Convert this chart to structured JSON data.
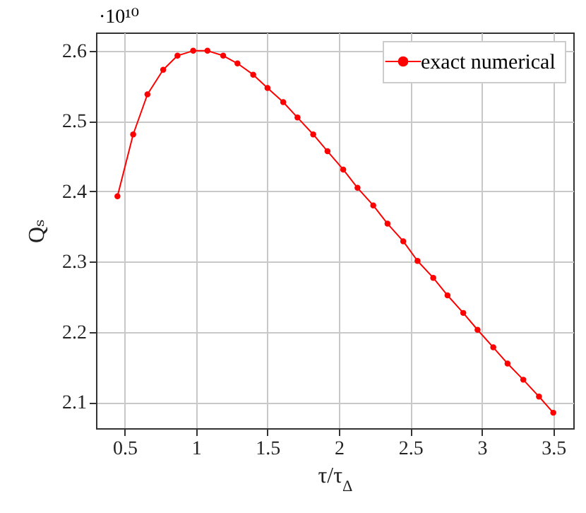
{
  "chart_data": {
    "type": "line",
    "xlabel": "τ/τ$_{Δ}$",
    "ylabel": "Qₛ",
    "annotations": [
      "·10¹⁰"
    ],
    "x": [
      0.45,
      0.56,
      0.66,
      0.77,
      0.87,
      0.98,
      1.08,
      1.19,
      1.29,
      1.4,
      1.5,
      1.61,
      1.71,
      1.82,
      1.92,
      2.03,
      2.13,
      2.24,
      2.34,
      2.45,
      2.55,
      2.66,
      2.76,
      2.87,
      2.97,
      3.08,
      3.18,
      3.29,
      3.4,
      3.5
    ],
    "series": [
      {
        "name": "exact numerical",
        "color": "#ff0000",
        "values": [
          2.393,
          2.481,
          2.538,
          2.573,
          2.593,
          2.6,
          2.6,
          2.593,
          2.582,
          2.566,
          2.547,
          2.527,
          2.505,
          2.481,
          2.457,
          2.431,
          2.405,
          2.38,
          2.354,
          2.329,
          2.301,
          2.277,
          2.252,
          2.227,
          2.203,
          2.178,
          2.155,
          2.132,
          2.108,
          2.085
        ]
      }
    ],
    "xlim": [
      0.3,
      3.64
    ],
    "ylim": [
      2.063,
      2.626
    ],
    "xticks": [
      0.5,
      1,
      1.5,
      2,
      2.5,
      3,
      3.5
    ],
    "yticks": [
      2.1,
      2.2,
      2.3,
      2.4,
      2.5,
      2.6
    ],
    "grid": true,
    "legend": "top right",
    "marker": "circle",
    "line_style": "solid"
  }
}
